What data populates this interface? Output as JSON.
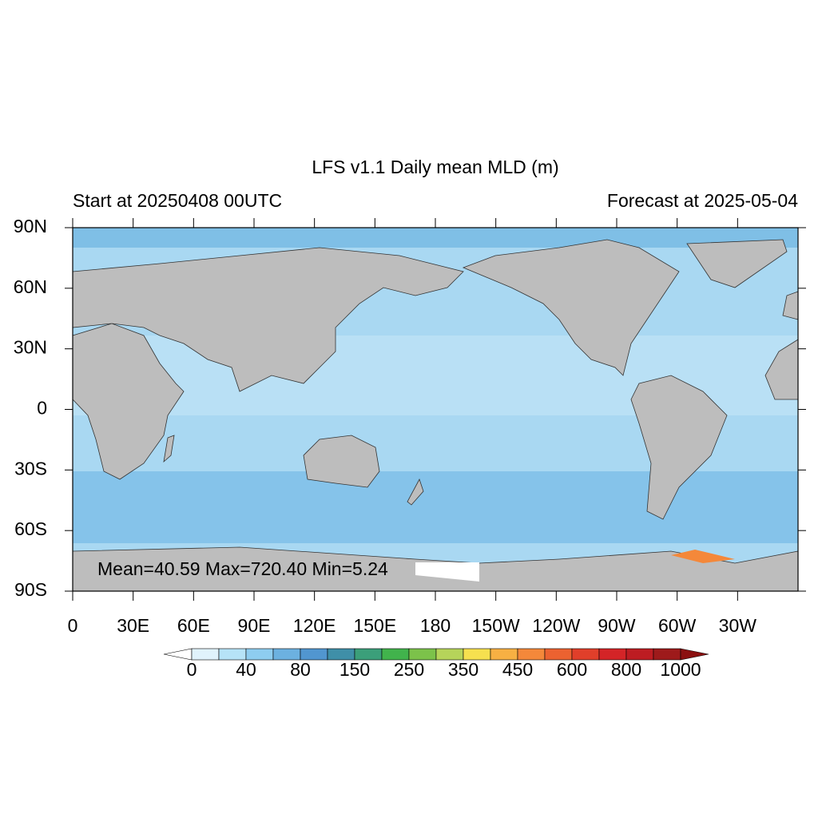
{
  "map": {
    "title": "LFS v1.1 Daily mean MLD (m)",
    "subtitle_left": "Start at 20250408 00UTC",
    "subtitle_right": "Forecast at 2025-05-04",
    "stats": "Mean=40.59  Max=720.40  Min=5.24",
    "lat_labels": [
      "90N",
      "60N",
      "30N",
      "0",
      "30S",
      "60S",
      "90S"
    ],
    "lon_labels": [
      "0",
      "30E",
      "60E",
      "90E",
      "120E",
      "150E",
      "180",
      "150W",
      "120W",
      "90W",
      "60W",
      "30W"
    ],
    "colorbar": {
      "labels": [
        "0",
        "40",
        "80",
        "150",
        "250",
        "350",
        "450",
        "600",
        "800",
        "1000"
      ],
      "colors": [
        "#e0f3fc",
        "#b6e3f7",
        "#8ecdf0",
        "#6cb1e0",
        "#5196d0",
        "#3f8fa8",
        "#3b9f7a",
        "#41b34c",
        "#7cc24a",
        "#b6d45a",
        "#f6e04f",
        "#f7b043",
        "#f4883a",
        "#ec6230",
        "#e03f2a",
        "#d42427",
        "#bd1c22",
        "#9e1a1b"
      ],
      "under_color": "#ffffff",
      "over_color": "#8b1010"
    }
  }
}
